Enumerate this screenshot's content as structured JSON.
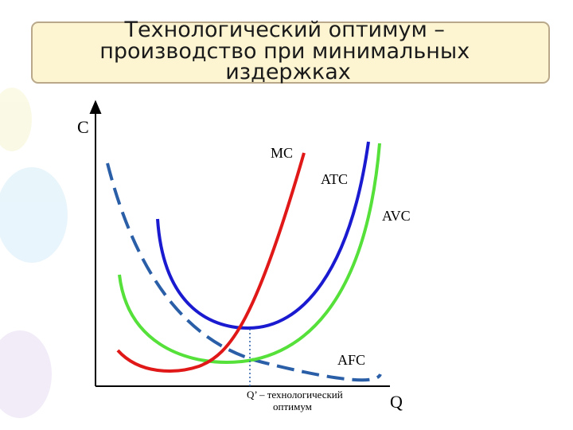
{
  "title": {
    "lines": [
      "Технологический оптимум –",
      "производство при минимальных",
      "издержках"
    ]
  },
  "axes": {
    "y_label": "C",
    "x_label": "Q"
  },
  "curves": {
    "mc": "MC",
    "atc": "ATC",
    "avc": "AVC",
    "afc": "AFC"
  },
  "annotation": {
    "lines": [
      "Q’ – технологический",
      "оптимум"
    ]
  }
}
